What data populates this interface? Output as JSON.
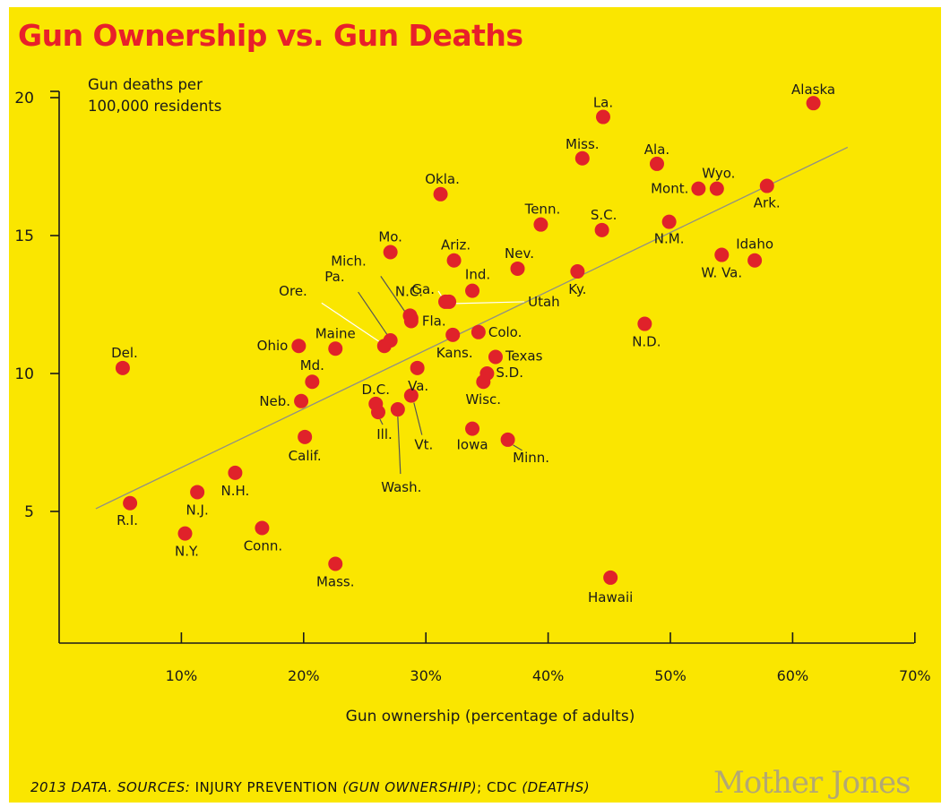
{
  "title": "Gun Ownership vs. Gun Deaths",
  "colors": {
    "background": "#FAE600",
    "title": "#E8202A",
    "point": "#E0222A",
    "trendline": "#8F8F86",
    "axis": "#1A1A1A",
    "brand": "#A79E88"
  },
  "footer": {
    "source_parts": [
      {
        "text": "2013 DATA. SOURCES: ",
        "italic": true
      },
      {
        "text": "INJURY PREVENTION ",
        "italic": false
      },
      {
        "text": "(GUN OWNERSHIP)",
        "italic": true
      },
      {
        "text": "; ",
        "italic": false
      },
      {
        "text": "CDC",
        "italic": false
      },
      {
        "text": " (DEATHS)",
        "italic": true
      }
    ],
    "brand": "Mother Jones"
  },
  "chart_data": {
    "type": "scatter",
    "title": "Gun Ownership vs. Gun Deaths",
    "xlabel": "Gun ownership (percentage of adults)",
    "ylabel": "Gun deaths per 100,000 residents",
    "xlim": [
      0,
      70
    ],
    "ylim": [
      0,
      20
    ],
    "xticks": [
      {
        "v": 10,
        "label": "10%"
      },
      {
        "v": 20,
        "label": "20%"
      },
      {
        "v": 30,
        "label": "30%"
      },
      {
        "v": 40,
        "label": "40%"
      },
      {
        "v": 50,
        "label": "50%"
      },
      {
        "v": 60,
        "label": "60%"
      },
      {
        "v": 70,
        "label": "70%"
      }
    ],
    "yticks": [
      {
        "v": 5,
        "label": "5"
      },
      {
        "v": 10,
        "label": "10"
      },
      {
        "v": 15,
        "label": "15"
      },
      {
        "v": 20,
        "label": "20"
      }
    ],
    "trendline": [
      {
        "x": 3,
        "y": 5.1
      },
      {
        "x": 64.5,
        "y": 18.2
      }
    ],
    "points": [
      {
        "label": "Alaska",
        "x": 61.7,
        "y": 19.8
      },
      {
        "label": "La.",
        "x": 44.5,
        "y": 19.3
      },
      {
        "label": "Miss.",
        "x": 42.8,
        "y": 17.8
      },
      {
        "label": "Ala.",
        "x": 48.9,
        "y": 17.6
      },
      {
        "label": "Wyo.",
        "x": 53.8,
        "y": 16.7
      },
      {
        "label": "Mont.",
        "x": 52.3,
        "y": 16.7
      },
      {
        "label": "Ark.",
        "x": 57.9,
        "y": 16.8
      },
      {
        "label": "Okla.",
        "x": 31.2,
        "y": 16.5
      },
      {
        "label": "Tenn.",
        "x": 39.4,
        "y": 15.4
      },
      {
        "label": "S.C.",
        "x": 44.4,
        "y": 15.2
      },
      {
        "label": "N.M.",
        "x": 49.9,
        "y": 15.5
      },
      {
        "label": "Idaho",
        "x": 56.9,
        "y": 14.1
      },
      {
        "label": "W. Va.",
        "x": 54.2,
        "y": 14.3
      },
      {
        "label": "Mo.",
        "x": 27.1,
        "y": 14.4
      },
      {
        "label": "Ariz.",
        "x": 32.3,
        "y": 14.1
      },
      {
        "label": "Nev.",
        "x": 37.5,
        "y": 13.8
      },
      {
        "label": "Ky.",
        "x": 42.4,
        "y": 13.7
      },
      {
        "label": "Ind.",
        "x": 33.8,
        "y": 13.0
      },
      {
        "label": "Ga.",
        "x": 31.6,
        "y": 12.6
      },
      {
        "label": "Utah",
        "x": 31.9,
        "y": 12.6
      },
      {
        "label": "N.C.",
        "x": 28.7,
        "y": 12.1
      },
      {
        "label": "Fla.",
        "x": 28.8,
        "y": 11.9
      },
      {
        "label": "Ore.",
        "x": 26.6,
        "y": 11.0
      },
      {
        "label": "Pa.",
        "x": 27.1,
        "y": 11.2
      },
      {
        "label": "Mich.",
        "x": 28.8,
        "y": 12.0
      },
      {
        "label": "Colo.",
        "x": 34.3,
        "y": 11.5
      },
      {
        "label": "Kans.",
        "x": 32.2,
        "y": 11.4
      },
      {
        "label": "N.D.",
        "x": 47.9,
        "y": 11.8
      },
      {
        "label": "Ohio",
        "x": 19.6,
        "y": 11.0
      },
      {
        "label": "Maine",
        "x": 22.6,
        "y": 10.9
      },
      {
        "label": "Del.",
        "x": 5.2,
        "y": 10.2
      },
      {
        "label": "Texas",
        "x": 35.7,
        "y": 10.6
      },
      {
        "label": "S.D.",
        "x": 35.0,
        "y": 10.0
      },
      {
        "label": "Wisc.",
        "x": 34.7,
        "y": 9.7
      },
      {
        "label": "Va.",
        "x": 29.3,
        "y": 10.2
      },
      {
        "label": "Md.",
        "x": 20.7,
        "y": 9.7
      },
      {
        "label": "Neb.",
        "x": 19.8,
        "y": 9.0
      },
      {
        "label": "D.C.",
        "x": 25.9,
        "y": 8.9
      },
      {
        "label": "Ill.",
        "x": 26.1,
        "y": 8.6
      },
      {
        "label": "Wash.",
        "x": 27.7,
        "y": 8.7
      },
      {
        "label": "Vt.",
        "x": 28.8,
        "y": 9.2
      },
      {
        "label": "Iowa",
        "x": 33.8,
        "y": 8.0
      },
      {
        "label": "Minn.",
        "x": 36.7,
        "y": 7.6
      },
      {
        "label": "Calif.",
        "x": 20.1,
        "y": 7.7
      },
      {
        "label": "N.H.",
        "x": 14.4,
        "y": 6.4
      },
      {
        "label": "N.J.",
        "x": 11.3,
        "y": 5.7
      },
      {
        "label": "R.I.",
        "x": 5.8,
        "y": 5.3
      },
      {
        "label": "N.Y.",
        "x": 10.3,
        "y": 4.2
      },
      {
        "label": "Conn.",
        "x": 16.6,
        "y": 4.4
      },
      {
        "label": "Mass.",
        "x": 22.6,
        "y": 3.1
      },
      {
        "label": "Hawaii",
        "x": 45.1,
        "y": 2.6
      }
    ]
  }
}
